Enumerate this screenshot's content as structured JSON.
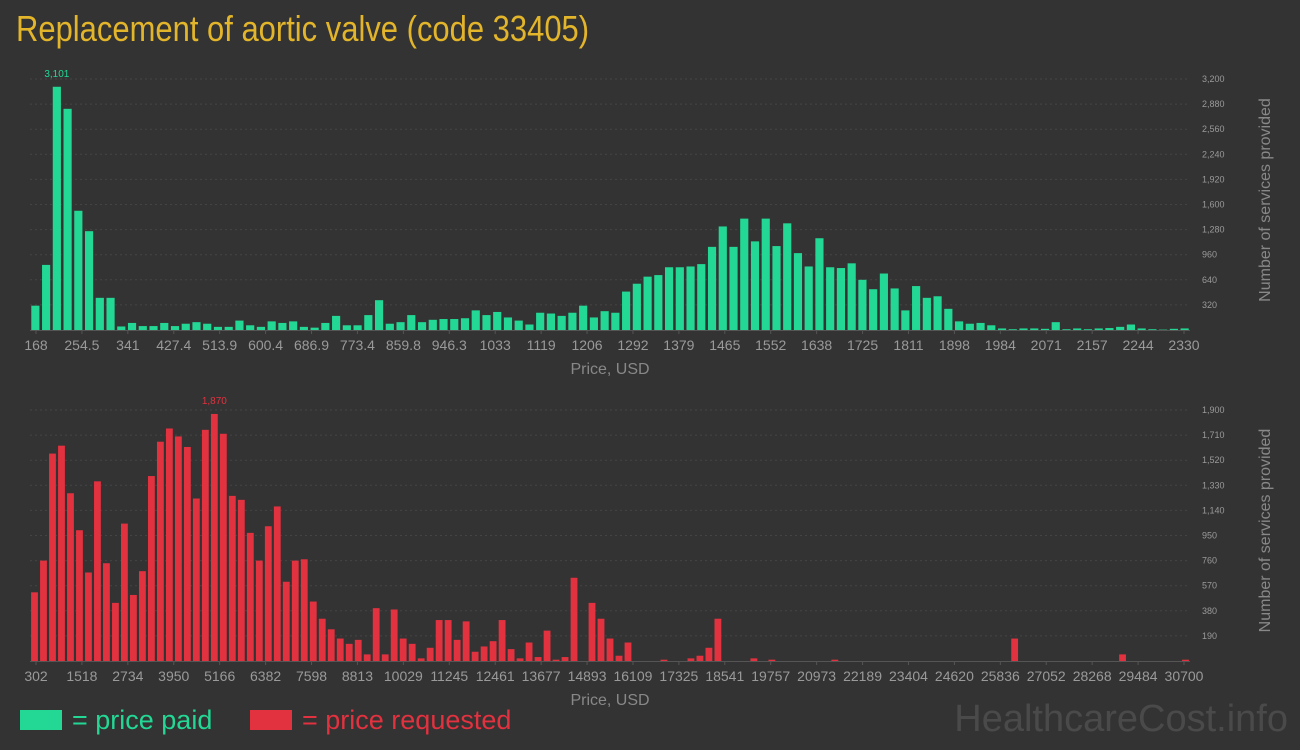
{
  "page": {
    "title": "Replacement of aortic valve (code 33405)",
    "watermark": "HealthcareCost.info"
  },
  "legend": {
    "paid_label": "= price paid",
    "requested_label": "= price requested",
    "paid_color": "#22d894",
    "requested_color": "#e2313f"
  },
  "chart_data": [
    {
      "type": "bar",
      "title": "",
      "xlabel": "Price, USD",
      "ylabel": "Number of services provided",
      "color": "#22d894",
      "x_tick_labels": [
        "168",
        "254.5",
        "341",
        "427.4",
        "513.9",
        "600.4",
        "686.9",
        "773.4",
        "859.8",
        "946.3",
        "1033",
        "1119",
        "1206",
        "1292",
        "1379",
        "1465",
        "1552",
        "1638",
        "1725",
        "1811",
        "1898",
        "1984",
        "2071",
        "2157",
        "2244",
        "2330"
      ],
      "y_ticks": [
        320,
        640,
        960,
        1280,
        1600,
        1920,
        2240,
        2560,
        2880,
        3200
      ],
      "y_tick_labels": [
        "320",
        "640",
        "960",
        "1,280",
        "1,600",
        "1,920",
        "2,240",
        "2,560",
        "2,880",
        "3,200"
      ],
      "ylim": [
        0,
        3200
      ],
      "peak_label": "3,101",
      "values": [
        310,
        830,
        3101,
        2820,
        1520,
        1260,
        410,
        410,
        45,
        90,
        50,
        50,
        90,
        50,
        80,
        100,
        80,
        40,
        40,
        120,
        60,
        40,
        110,
        90,
        110,
        40,
        30,
        90,
        180,
        60,
        60,
        190,
        380,
        80,
        100,
        190,
        100,
        130,
        140,
        140,
        150,
        250,
        190,
        230,
        160,
        120,
        70,
        220,
        210,
        180,
        220,
        310,
        160,
        240,
        220,
        490,
        590,
        680,
        700,
        800,
        800,
        810,
        840,
        1060,
        1320,
        1060,
        1420,
        1130,
        1420,
        1070,
        1360,
        980,
        810,
        1170,
        800,
        790,
        850,
        640,
        520,
        720,
        530,
        250,
        560,
        410,
        430,
        270,
        110,
        80,
        90,
        60,
        20,
        10,
        20,
        20,
        15,
        100,
        10,
        20,
        10,
        20,
        25,
        40,
        70,
        20,
        10,
        5,
        15,
        20
      ]
    },
    {
      "type": "bar",
      "title": "",
      "xlabel": "Price, USD",
      "ylabel": "Number of services provided",
      "color": "#e2313f",
      "x_tick_labels": [
        "302",
        "1518",
        "2734",
        "3950",
        "5166",
        "6382",
        "7598",
        "8813",
        "10029",
        "11245",
        "12461",
        "13677",
        "14893",
        "16109",
        "17325",
        "18541",
        "19757",
        "20973",
        "22189",
        "23404",
        "24620",
        "25836",
        "27052",
        "28268",
        "29484",
        "30700"
      ],
      "y_ticks": [
        190,
        380,
        570,
        760,
        950,
        1140,
        1330,
        1520,
        1710,
        1900
      ],
      "y_tick_labels": [
        "190",
        "380",
        "570",
        "760",
        "950",
        "1,140",
        "1,330",
        "1,520",
        "1,710",
        "1,900"
      ],
      "ylim": [
        0,
        1900
      ],
      "peak_label": "1,870",
      "values": [
        520,
        760,
        1570,
        1630,
        1270,
        990,
        670,
        1360,
        740,
        440,
        1040,
        500,
        680,
        1400,
        1660,
        1760,
        1700,
        1620,
        1230,
        1750,
        1870,
        1720,
        1250,
        1220,
        970,
        760,
        1020,
        1170,
        600,
        760,
        770,
        450,
        320,
        240,
        170,
        130,
        160,
        50,
        400,
        50,
        390,
        170,
        130,
        20,
        100,
        310,
        310,
        160,
        300,
        70,
        110,
        150,
        310,
        90,
        20,
        140,
        30,
        230,
        10,
        30,
        630,
        0,
        440,
        320,
        170,
        40,
        140,
        0,
        0,
        0,
        10,
        0,
        0,
        20,
        40,
        100,
        320,
        0,
        0,
        0,
        20,
        0,
        10,
        0,
        0,
        0,
        0,
        0,
        0,
        10,
        0,
        0,
        0,
        0,
        0,
        0,
        0,
        0,
        0,
        0,
        0,
        0,
        0,
        0,
        0,
        0,
        0,
        0,
        0,
        170,
        0,
        0,
        0,
        0,
        0,
        0,
        0,
        0,
        0,
        0,
        0,
        50,
        0,
        0,
        0,
        0,
        0,
        0,
        10
      ]
    }
  ]
}
